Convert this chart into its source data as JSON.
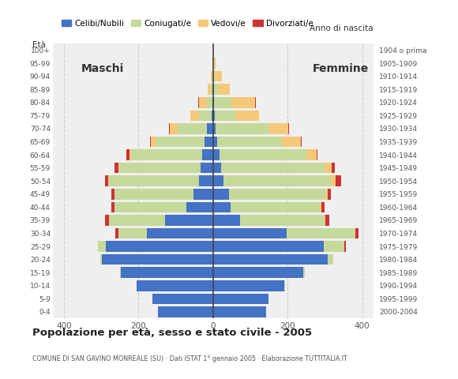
{
  "age_groups": [
    "0-4",
    "5-9",
    "10-14",
    "15-19",
    "20-24",
    "25-29",
    "30-34",
    "35-39",
    "40-44",
    "45-49",
    "50-54",
    "55-59",
    "60-64",
    "65-69",
    "70-74",
    "75-79",
    "80-84",
    "85-89",
    "90-94",
    "95-99",
    "100+"
  ],
  "birth_years": [
    "2000-2004",
    "1995-1999",
    "1990-1994",
    "1985-1989",
    "1980-1984",
    "1975-1979",
    "1970-1974",
    "1965-1969",
    "1960-1964",
    "1955-1959",
    "1950-1954",
    "1945-1949",
    "1940-1944",
    "1935-1939",
    "1930-1934",
    "1925-1929",
    "1920-1924",
    "1915-1919",
    "1910-1914",
    "1905-1909",
    "1904 o prima"
  ],
  "colors": {
    "celibe": "#4472c4",
    "coniugato": "#c5d99b",
    "vedovo": "#f5c97a",
    "divorziato": "#cc3333"
  },
  "males": {
    "celibe": [
      148,
      162,
      205,
      248,
      298,
      288,
      178,
      128,
      72,
      52,
      38,
      33,
      28,
      22,
      16,
      4,
      2,
      2,
      0,
      0,
      0
    ],
    "coniugato": [
      0,
      0,
      0,
      2,
      5,
      20,
      75,
      152,
      192,
      212,
      242,
      218,
      192,
      132,
      78,
      34,
      14,
      4,
      2,
      0,
      0
    ],
    "vedovo": [
      0,
      0,
      0,
      0,
      0,
      0,
      0,
      0,
      1,
      1,
      2,
      3,
      4,
      12,
      22,
      22,
      22,
      8,
      4,
      1,
      0
    ],
    "divorziato": [
      0,
      0,
      0,
      0,
      0,
      0,
      8,
      10,
      8,
      8,
      8,
      10,
      8,
      2,
      2,
      0,
      1,
      0,
      0,
      0,
      0
    ]
  },
  "females": {
    "celibe": [
      142,
      148,
      192,
      242,
      308,
      298,
      198,
      72,
      48,
      42,
      28,
      22,
      18,
      12,
      8,
      4,
      2,
      2,
      1,
      0,
      0
    ],
    "coniugato": [
      0,
      0,
      2,
      4,
      14,
      54,
      182,
      228,
      238,
      262,
      288,
      278,
      232,
      172,
      142,
      58,
      48,
      12,
      4,
      2,
      0
    ],
    "vedovo": [
      0,
      0,
      0,
      0,
      0,
      0,
      1,
      2,
      4,
      4,
      14,
      18,
      28,
      52,
      52,
      62,
      62,
      32,
      18,
      4,
      1
    ],
    "divorziato": [
      0,
      0,
      0,
      0,
      0,
      4,
      10,
      10,
      10,
      8,
      14,
      8,
      2,
      2,
      2,
      0,
      2,
      0,
      0,
      0,
      0
    ]
  },
  "xlim": 430,
  "title": "Popolazione per età, sesso e stato civile - 2005",
  "subtitle": "COMUNE DI SAN GAVINO MONREALE (SU) · Dati ISTAT 1° gennaio 2005 · Elaborazione TUTTITALIA.IT",
  "xlabel_left": "Maschi",
  "xlabel_right": "Femmine",
  "ylabel_left": "Età",
  "ylabel_right": "Anno di nascita",
  "legend_labels": [
    "Celibi/Nubili",
    "Coniugati/e",
    "Vedovi/e",
    "Divorziati/e"
  ],
  "xticks": [
    -400,
    -200,
    0,
    200,
    400
  ],
  "xtick_labels": [
    "400",
    "200",
    "0",
    "200",
    "400"
  ],
  "background_color": "#ffffff",
  "bar_background": "#efefef"
}
